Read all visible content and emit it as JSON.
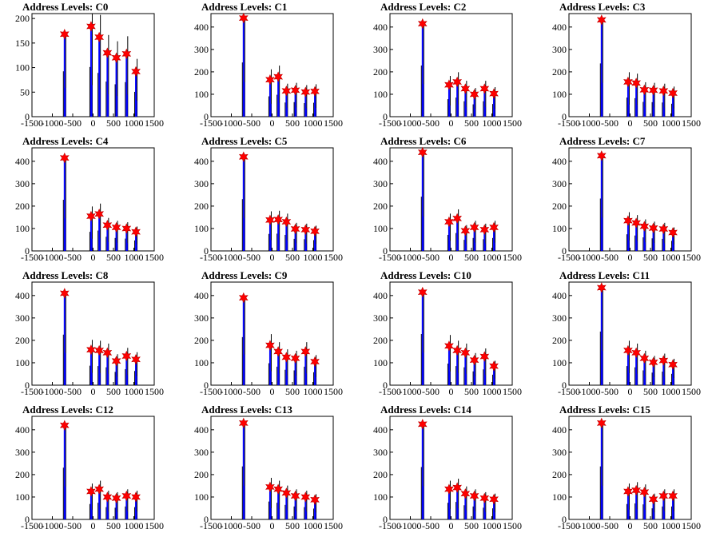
{
  "chart_data": [
    {
      "type": "histogram",
      "title": "Address Levels: C0",
      "xlim": [
        -1500,
        1500
      ],
      "ylim": [
        0,
        210
      ],
      "yticks": [
        0,
        50,
        100,
        150,
        200
      ],
      "xticks": [
        -1500,
        -1000,
        -500,
        0,
        500,
        1000,
        1500
      ],
      "x": [
        -700,
        -50,
        150,
        350,
        570,
        820,
        1050
      ],
      "peaks": [
        168,
        184,
        162,
        130,
        120,
        128,
        92
      ]
    },
    {
      "type": "histogram",
      "title": "Address Levels: C1",
      "xlim": [
        -1500,
        1500
      ],
      "ylim": [
        0,
        460
      ],
      "yticks": [
        0,
        100,
        200,
        300,
        400
      ],
      "xticks": [
        -1500,
        -1000,
        -500,
        0,
        500,
        1000,
        1500
      ],
      "x": [
        -700,
        -50,
        150,
        350,
        570,
        820,
        1050
      ],
      "peaks": [
        440,
        165,
        178,
        115,
        118,
        110,
        113
      ]
    },
    {
      "type": "histogram",
      "title": "Address Levels: C2",
      "xlim": [
        -1500,
        1500
      ],
      "ylim": [
        0,
        460
      ],
      "yticks": [
        0,
        100,
        200,
        300,
        400
      ],
      "xticks": [
        -1500,
        -1000,
        -500,
        0,
        500,
        1000,
        1500
      ],
      "x": [
        -700,
        -50,
        150,
        350,
        570,
        820,
        1050
      ],
      "peaks": [
        415,
        142,
        155,
        125,
        100,
        125,
        103
      ]
    },
    {
      "type": "histogram",
      "title": "Address Levels: C3",
      "xlim": [
        -1500,
        1500
      ],
      "ylim": [
        0,
        460
      ],
      "yticks": [
        0,
        100,
        200,
        300,
        400
      ],
      "xticks": [
        -1500,
        -1000,
        -500,
        0,
        500,
        1000,
        1500
      ],
      "x": [
        -700,
        -50,
        150,
        350,
        570,
        820,
        1050
      ],
      "peaks": [
        432,
        155,
        150,
        120,
        118,
        115,
        105
      ]
    },
    {
      "type": "histogram",
      "title": "Address Levels: C4",
      "xlim": [
        -1500,
        1500
      ],
      "ylim": [
        0,
        460
      ],
      "yticks": [
        0,
        100,
        200,
        300,
        400
      ],
      "xticks": [
        -1500,
        -1000,
        -500,
        0,
        500,
        1000,
        1500
      ],
      "x": [
        -700,
        -50,
        150,
        350,
        570,
        820,
        1050
      ],
      "peaks": [
        415,
        155,
        165,
        115,
        105,
        100,
        85
      ]
    },
    {
      "type": "histogram",
      "title": "Address Levels: C5",
      "xlim": [
        -1500,
        1500
      ],
      "ylim": [
        0,
        460
      ],
      "yticks": [
        0,
        100,
        200,
        300,
        400
      ],
      "xticks": [
        -1500,
        -1000,
        -500,
        0,
        500,
        1000,
        1500
      ],
      "x": [
        -700,
        -50,
        150,
        350,
        570,
        820,
        1050
      ],
      "peaks": [
        420,
        138,
        140,
        130,
        98,
        95,
        88
      ]
    },
    {
      "type": "histogram",
      "title": "Address Levels: C6",
      "xlim": [
        -1500,
        1500
      ],
      "ylim": [
        0,
        460
      ],
      "yticks": [
        0,
        100,
        200,
        300,
        400
      ],
      "xticks": [
        -1500,
        -1000,
        -500,
        0,
        500,
        1000,
        1500
      ],
      "x": [
        -700,
        -50,
        150,
        350,
        570,
        820,
        1050
      ],
      "peaks": [
        440,
        130,
        145,
        90,
        105,
        95,
        105
      ]
    },
    {
      "type": "histogram",
      "title": "Address Levels: C7",
      "xlim": [
        -1500,
        1500
      ],
      "ylim": [
        0,
        460
      ],
      "yticks": [
        0,
        100,
        200,
        300,
        400
      ],
      "xticks": [
        -1500,
        -1000,
        -500,
        0,
        500,
        1000,
        1500
      ],
      "x": [
        -700,
        -50,
        150,
        350,
        570,
        820,
        1050
      ],
      "peaks": [
        425,
        135,
        125,
        110,
        102,
        98,
        82
      ]
    },
    {
      "type": "histogram",
      "title": "Address Levels: C8",
      "xlim": [
        -1500,
        1500
      ],
      "ylim": [
        0,
        460
      ],
      "yticks": [
        0,
        100,
        200,
        300,
        400
      ],
      "xticks": [
        -1500,
        -1000,
        -500,
        0,
        500,
        1000,
        1500
      ],
      "x": [
        -700,
        -50,
        150,
        350,
        570,
        820,
        1050
      ],
      "peaks": [
        410,
        158,
        155,
        145,
        108,
        130,
        115
      ]
    },
    {
      "type": "histogram",
      "title": "Address Levels: C9",
      "xlim": [
        -1500,
        1500
      ],
      "ylim": [
        0,
        460
      ],
      "yticks": [
        0,
        100,
        200,
        300,
        400
      ],
      "xticks": [
        -1500,
        -1000,
        -500,
        0,
        500,
        1000,
        1500
      ],
      "x": [
        -700,
        -50,
        150,
        350,
        570,
        820,
        1050
      ],
      "peaks": [
        390,
        178,
        150,
        125,
        120,
        150,
        105
      ]
    },
    {
      "type": "histogram",
      "title": "Address Levels: C10",
      "xlim": [
        -1500,
        1500
      ],
      "ylim": [
        0,
        460
      ],
      "yticks": [
        0,
        100,
        200,
        300,
        400
      ],
      "xticks": [
        -1500,
        -1000,
        -500,
        0,
        500,
        1000,
        1500
      ],
      "x": [
        -700,
        -50,
        150,
        350,
        570,
        820,
        1050
      ],
      "peaks": [
        415,
        175,
        155,
        145,
        112,
        128,
        85
      ]
    },
    {
      "type": "histogram",
      "title": "Address Levels: C11",
      "xlim": [
        -1500,
        1500
      ],
      "ylim": [
        0,
        460
      ],
      "yticks": [
        0,
        100,
        200,
        300,
        400
      ],
      "xticks": [
        -1500,
        -1000,
        -500,
        0,
        500,
        1000,
        1500
      ],
      "x": [
        -700,
        -50,
        150,
        350,
        570,
        820,
        1050
      ],
      "peaks": [
        435,
        155,
        145,
        120,
        102,
        110,
        92
      ]
    },
    {
      "type": "histogram",
      "title": "Address Levels: C12",
      "xlim": [
        -1500,
        1500
      ],
      "ylim": [
        0,
        460
      ],
      "yticks": [
        0,
        100,
        200,
        300,
        400
      ],
      "xticks": [
        -1500,
        -1000,
        -500,
        0,
        500,
        1000,
        1500
      ],
      "x": [
        -700,
        -50,
        150,
        350,
        570,
        820,
        1050
      ],
      "peaks": [
        420,
        125,
        135,
        100,
        95,
        105,
        100
      ]
    },
    {
      "type": "histogram",
      "title": "Address Levels: C13",
      "xlim": [
        -1500,
        1500
      ],
      "ylim": [
        0,
        460
      ],
      "yticks": [
        0,
        100,
        200,
        300,
        400
      ],
      "xticks": [
        -1500,
        -1000,
        -500,
        0,
        500,
        1000,
        1500
      ],
      "x": [
        -700,
        -50,
        150,
        350,
        570,
        820,
        1050
      ],
      "peaks": [
        430,
        145,
        135,
        118,
        105,
        100,
        88
      ]
    },
    {
      "type": "histogram",
      "title": "Address Levels: C14",
      "xlim": [
        -1500,
        1500
      ],
      "ylim": [
        0,
        460
      ],
      "yticks": [
        0,
        100,
        200,
        300,
        400
      ],
      "xticks": [
        -1500,
        -1000,
        -500,
        0,
        500,
        1000,
        1500
      ],
      "x": [
        -700,
        -50,
        150,
        350,
        570,
        820,
        1050
      ],
      "peaks": [
        425,
        135,
        142,
        115,
        105,
        95,
        90
      ]
    },
    {
      "type": "histogram",
      "title": "Address Levels: C15",
      "xlim": [
        -1500,
        1500
      ],
      "ylim": [
        0,
        460
      ],
      "yticks": [
        0,
        100,
        200,
        300,
        400
      ],
      "xticks": [
        -1500,
        -1000,
        -500,
        0,
        500,
        1000,
        1500
      ],
      "x": [
        -700,
        -50,
        150,
        350,
        570,
        820,
        1050
      ],
      "peaks": [
        430,
        125,
        130,
        122,
        90,
        105,
        105
      ]
    }
  ],
  "colors": {
    "hist": "#0000ff",
    "spike": "#000000",
    "marker": "#ff0000",
    "marker_stroke": "#c00000",
    "axis": "#000000"
  }
}
